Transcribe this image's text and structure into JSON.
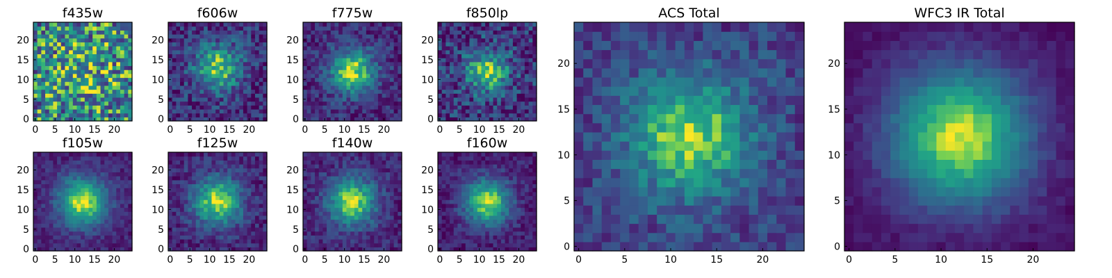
{
  "chart_data": [
    {
      "type": "heatmap",
      "title": "f435w",
      "x_ticks": [
        "0",
        "5",
        "10",
        "15",
        "20"
      ],
      "y_ticks": [
        "0",
        "5",
        "10",
        "15",
        "20"
      ],
      "grid_size": 25,
      "colormap": "viridis",
      "peak": [
        12,
        12
      ],
      "sigma": 6,
      "contrast": 0.15,
      "noise": 0.85,
      "base": 0.55
    },
    {
      "type": "heatmap",
      "title": "f606w",
      "x_ticks": [
        "0",
        "5",
        "10",
        "15",
        "20"
      ],
      "y_ticks": [
        "0",
        "5",
        "10",
        "15",
        "20"
      ],
      "grid_size": 25,
      "colormap": "viridis",
      "peak": [
        12,
        13
      ],
      "sigma": 4.2,
      "contrast": 0.65,
      "noise": 0.45,
      "base": 0.2
    },
    {
      "type": "heatmap",
      "title": "f775w",
      "x_ticks": [
        "0",
        "5",
        "10",
        "15",
        "20"
      ],
      "y_ticks": [
        "0",
        "5",
        "10",
        "15",
        "20"
      ],
      "grid_size": 25,
      "colormap": "viridis",
      "peak": [
        12,
        12
      ],
      "sigma": 3.8,
      "contrast": 0.75,
      "noise": 0.35,
      "base": 0.2
    },
    {
      "type": "heatmap",
      "title": "f850lp",
      "x_ticks": [
        "0",
        "5",
        "10",
        "15",
        "20"
      ],
      "y_ticks": [
        "0",
        "5",
        "10",
        "15",
        "20"
      ],
      "grid_size": 25,
      "colormap": "viridis",
      "peak": [
        12,
        12
      ],
      "sigma": 4.0,
      "contrast": 0.6,
      "noise": 0.55,
      "base": 0.22
    },
    {
      "type": "heatmap",
      "title": "f105w",
      "x_ticks": [
        "0",
        "5",
        "10",
        "15",
        "20"
      ],
      "y_ticks": [
        "0",
        "5",
        "10",
        "15",
        "20"
      ],
      "grid_size": 25,
      "colormap": "viridis",
      "peak": [
        12,
        12
      ],
      "sigma": 4.2,
      "contrast": 0.8,
      "noise": 0.22,
      "base": 0.18
    },
    {
      "type": "heatmap",
      "title": "f125w",
      "x_ticks": [
        "0",
        "5",
        "10",
        "15",
        "20"
      ],
      "y_ticks": [
        "0",
        "5",
        "10",
        "15",
        "20"
      ],
      "grid_size": 25,
      "colormap": "viridis",
      "peak": [
        12,
        12
      ],
      "sigma": 4.2,
      "contrast": 0.75,
      "noise": 0.3,
      "base": 0.18
    },
    {
      "type": "heatmap",
      "title": "f140w",
      "x_ticks": [
        "0",
        "5",
        "10",
        "15",
        "20"
      ],
      "y_ticks": [
        "0",
        "5",
        "10",
        "15",
        "20"
      ],
      "grid_size": 25,
      "colormap": "viridis",
      "peak": [
        12,
        12
      ],
      "sigma": 4.2,
      "contrast": 0.75,
      "noise": 0.28,
      "base": 0.18
    },
    {
      "type": "heatmap",
      "title": "f160w",
      "x_ticks": [
        "0",
        "5",
        "10",
        "15",
        "20"
      ],
      "y_ticks": [
        "0",
        "5",
        "10",
        "15",
        "20"
      ],
      "grid_size": 25,
      "colormap": "viridis",
      "peak": [
        12,
        12
      ],
      "sigma": 4.0,
      "contrast": 0.8,
      "noise": 0.25,
      "base": 0.15
    },
    {
      "type": "heatmap",
      "title": "ACS Total",
      "x_ticks": [
        "0",
        "5",
        "10",
        "15",
        "20"
      ],
      "y_ticks": [
        "0",
        "5",
        "10",
        "15",
        "20"
      ],
      "grid_size": 25,
      "colormap": "viridis",
      "peak": [
        12,
        12
      ],
      "sigma": 4.5,
      "contrast": 0.65,
      "noise": 0.32,
      "base": 0.28
    },
    {
      "type": "heatmap",
      "title": "WFC3 IR Total",
      "x_ticks": [
        "0",
        "5",
        "10",
        "15",
        "20"
      ],
      "y_ticks": [
        "0",
        "5",
        "10",
        "15",
        "20"
      ],
      "grid_size": 25,
      "colormap": "viridis",
      "peak": [
        12,
        12
      ],
      "sigma": 5.2,
      "contrast": 0.85,
      "noise": 0.12,
      "base": 0.12
    }
  ]
}
